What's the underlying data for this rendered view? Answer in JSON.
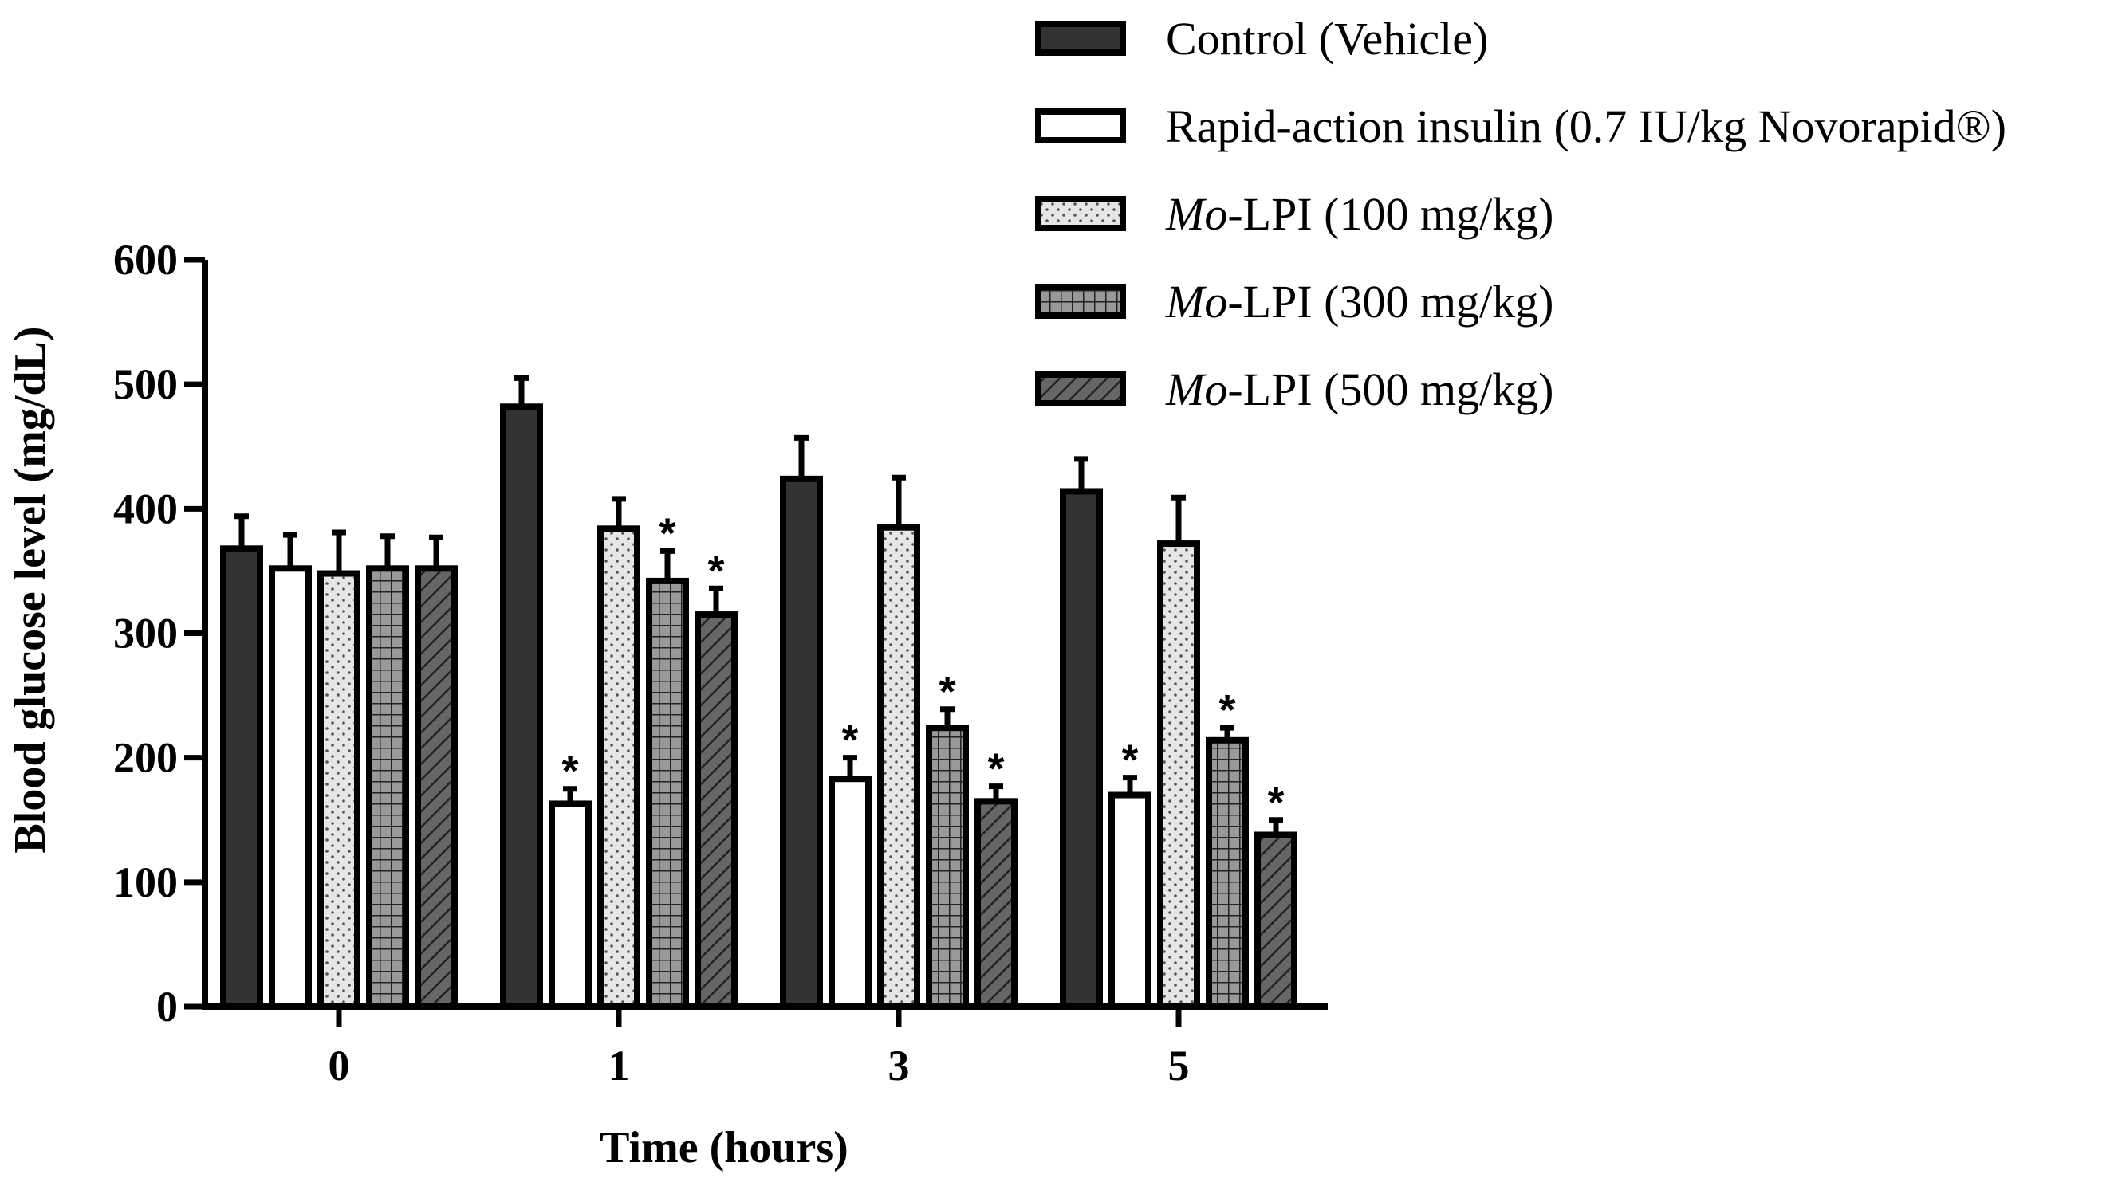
{
  "chart_data": {
    "type": "bar",
    "title": "",
    "xlabel": "Time (hours)",
    "ylabel": "Blood glucose level (mg/dL)",
    "ylim": [
      0,
      600
    ],
    "yticks": [
      0,
      100,
      200,
      300,
      400,
      500,
      600
    ],
    "grid": false,
    "legend_position": "top-right",
    "categories": [
      "0",
      "1",
      "3",
      "5"
    ],
    "significance_marker": "*",
    "series": [
      {
        "name": "Control (Vehicle)",
        "name_parts": [
          {
            "text": "Control (Vehicle)",
            "italic": false
          }
        ],
        "pattern": "solid-dark",
        "color": "#333333",
        "values": [
          368,
          482,
          424,
          414
        ],
        "errors": [
          26,
          23,
          33,
          26
        ],
        "significant": [
          false,
          false,
          false,
          false
        ]
      },
      {
        "name": "Rapid-action insulin (0.7 IU/kg Novorapid®)",
        "name_parts": [
          {
            "text": "Rapid-action insulin (0.7 IU/kg Novorapid®)",
            "italic": false
          }
        ],
        "pattern": "white",
        "color": "#ffffff",
        "values": [
          352,
          163,
          183,
          170
        ],
        "errors": [
          27,
          12,
          17,
          14
        ],
        "significant": [
          false,
          true,
          true,
          true
        ]
      },
      {
        "name": "Mo-LPI (100 mg/kg)",
        "name_parts": [
          {
            "text": "Mo",
            "italic": true
          },
          {
            "text": "-LPI (100 mg/kg)",
            "italic": false
          }
        ],
        "pattern": "dots",
        "color": "#e6e6e6",
        "values": [
          348,
          384,
          385,
          372
        ],
        "errors": [
          33,
          24,
          40,
          37
        ],
        "significant": [
          false,
          false,
          false,
          false
        ]
      },
      {
        "name": "Mo-LPI (300 mg/kg)",
        "name_parts": [
          {
            "text": "Mo",
            "italic": true
          },
          {
            "text": "-LPI (300 mg/kg)",
            "italic": false
          }
        ],
        "pattern": "grid",
        "color": "#999999",
        "values": [
          352,
          342,
          224,
          214
        ],
        "errors": [
          26,
          24,
          15,
          10
        ],
        "significant": [
          false,
          true,
          true,
          true
        ]
      },
      {
        "name": "Mo-LPI (500 mg/kg)",
        "name_parts": [
          {
            "text": "Mo",
            "italic": true
          },
          {
            "text": "-LPI (500 mg/kg)",
            "italic": false
          }
        ],
        "pattern": "hatch",
        "color": "#666666",
        "values": [
          352,
          315,
          165,
          138
        ],
        "errors": [
          25,
          21,
          12,
          12
        ],
        "significant": [
          false,
          true,
          true,
          true
        ]
      }
    ]
  }
}
